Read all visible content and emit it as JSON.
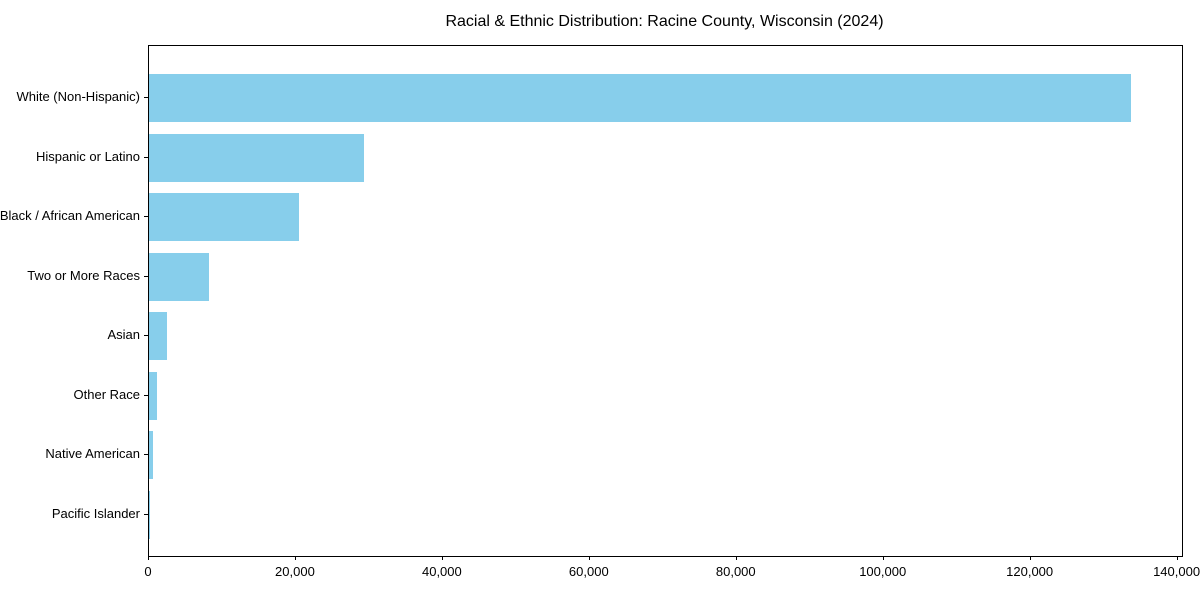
{
  "title": "Racial & Ethnic Distribution: Racine County, Wisconsin (2024)",
  "colors": {
    "bar": "#87CEEB",
    "background": "#ffffff",
    "axis": "#000000",
    "text": "#000000"
  },
  "chart_data": {
    "type": "bar",
    "orientation": "horizontal",
    "title": "Racial & Ethnic Distribution: Racine County, Wisconsin (2024)",
    "categories": [
      "White (Non-Hispanic)",
      "Hispanic or Latino",
      "Black / African American",
      "Two or More Races",
      "Asian",
      "Other Race",
      "Native American",
      "Pacific Islander"
    ],
    "values": [
      133600,
      29300,
      20400,
      8200,
      2450,
      1150,
      480,
      60
    ],
    "xlabel": "",
    "ylabel": "",
    "xlim": [
      0,
      140600
    ],
    "xticks": [
      0,
      20000,
      40000,
      60000,
      80000,
      100000,
      120000,
      140000
    ],
    "xtick_labels": [
      "0",
      "20,000",
      "40,000",
      "60,000",
      "80,000",
      "100,000",
      "120,000",
      "140,000"
    ],
    "bar_color": "#87CEEB",
    "grid": false,
    "legend": null
  }
}
